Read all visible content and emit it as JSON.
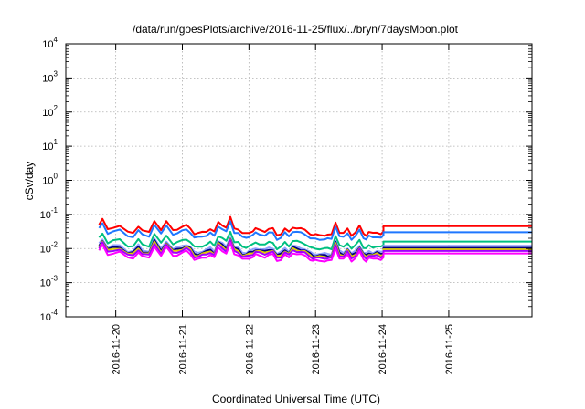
{
  "chart_data": {
    "type": "line",
    "title": "/data/run/goesPlots/archive/2016-11-25/flux/../bryn/7daysMoon.plot",
    "xlabel": "Coordinated Universal Time (UTC)",
    "ylabel": "cSv/day",
    "yscale": "log",
    "ylim": [
      0.0001,
      10000
    ],
    "xlim": [
      "2016-11-19 06:00",
      "2016-11-26 06:00"
    ],
    "grid": true,
    "x_tick_labels": [
      "2016-11-20",
      "2016-11-21",
      "2016-11-22",
      "2016-11-23",
      "2016-11-24",
      "2016-11-25"
    ],
    "x_ticks": [
      1.0,
      2.0,
      3.0,
      4.0,
      5.0,
      6.0
    ],
    "y_ticks": [
      {
        "base": "10",
        "exp": "-4",
        "value": 0.0001
      },
      {
        "base": "10",
        "exp": "-3",
        "value": 0.001
      },
      {
        "base": "10",
        "exp": "-2",
        "value": 0.01
      },
      {
        "base": "10",
        "exp": "-1",
        "value": 0.1
      },
      {
        "base": "10",
        "exp": "0",
        "value": 1
      },
      {
        "base": "10",
        "exp": "1",
        "value": 10
      },
      {
        "base": "10",
        "exp": "2",
        "value": 100
      },
      {
        "base": "10",
        "exp": "3",
        "value": 1000
      },
      {
        "base": "10",
        "exp": "4",
        "value": 10000
      }
    ],
    "x_unit_note": "x values are days after 2016-11-19 00:00 UTC",
    "base_profile": {
      "x": [
        0.75,
        0.8,
        0.88,
        0.96,
        1.06,
        1.18,
        1.26,
        1.34,
        1.4,
        1.5,
        1.58,
        1.68,
        1.76,
        1.86,
        1.92,
        2.0,
        2.06,
        2.12,
        2.18,
        2.24,
        2.3,
        2.36,
        2.42,
        2.48,
        2.54,
        2.6,
        2.66,
        2.72,
        2.78,
        2.84,
        2.9,
        2.96,
        3.0,
        3.06,
        3.1,
        3.16,
        3.24,
        3.3,
        3.36,
        3.42,
        3.48,
        3.54,
        3.6,
        3.66,
        3.72,
        3.78,
        3.84,
        3.92,
        3.96,
        4.0,
        4.06,
        4.14,
        4.18,
        4.24,
        4.3,
        4.36,
        4.42,
        4.48,
        4.54,
        4.6,
        4.66,
        4.72,
        4.76,
        4.8,
        4.86,
        4.92,
        4.98,
        5.02
      ],
      "factor": [
        1.0,
        1.4,
        0.75,
        0.85,
        0.9,
        0.6,
        0.6,
        0.9,
        0.65,
        0.6,
        1.35,
        0.7,
        1.2,
        0.7,
        0.75,
        0.85,
        0.95,
        0.8,
        0.55,
        0.55,
        0.6,
        0.65,
        0.75,
        0.6,
        1.2,
        1.0,
        0.8,
        1.6,
        0.8,
        0.75,
        0.55,
        0.55,
        0.6,
        0.65,
        0.75,
        0.7,
        0.65,
        0.75,
        0.75,
        0.5,
        0.55,
        0.75,
        0.6,
        0.85,
        0.8,
        0.75,
        0.7,
        0.55,
        0.5,
        0.5,
        0.5,
        0.5,
        0.5,
        0.5,
        1.2,
        0.6,
        0.55,
        0.75,
        0.5,
        0.6,
        0.9,
        0.55,
        0.5,
        0.6,
        0.55,
        0.6,
        0.55,
        0.6
      ]
    },
    "flat_start": 5.02,
    "series": [
      {
        "color": "#ff0000",
        "base": 0.05,
        "flat": 0.045
      },
      {
        "color": "#1f77ff",
        "base": 0.038,
        "flat": 0.03
      },
      {
        "color": "#00c080",
        "base": 0.02,
        "flat": 0.016
      },
      {
        "color": "#8fa0ff",
        "base": 0.014,
        "flat": 0.012
      },
      {
        "color": "#000080",
        "base": 0.0125,
        "flat": 0.0105
      },
      {
        "color": "#e0d000",
        "base": 0.0115,
        "flat": 0.0095
      },
      {
        "color": "#a000ff",
        "base": 0.0105,
        "flat": 0.0085
      },
      {
        "color": "#ff00ff",
        "base": 0.0088,
        "flat": 0.0072
      }
    ]
  }
}
